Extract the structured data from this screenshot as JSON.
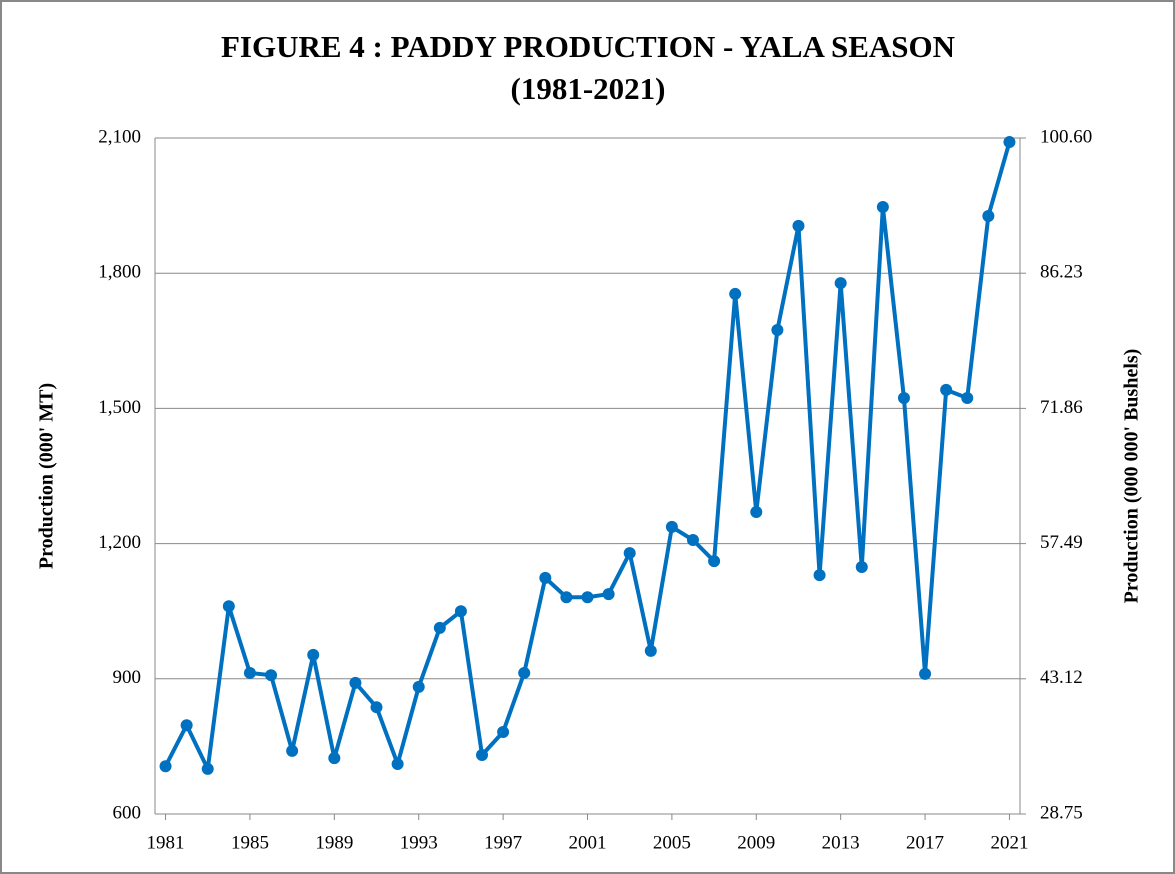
{
  "chart_data": {
    "type": "line",
    "title": "FIGURE 4 : PADDY PRODUCTION -  YALA SEASON",
    "subtitle": "(1981-2021)",
    "y_label": "Production (000' MT)",
    "y2_label": "Production (000 000' Bushels)",
    "x": [
      1981,
      1982,
      1983,
      1984,
      1985,
      1986,
      1987,
      1988,
      1989,
      1990,
      1991,
      1992,
      1993,
      1994,
      1995,
      1996,
      1997,
      1998,
      1999,
      2000,
      2001,
      2002,
      2003,
      2004,
      2005,
      2006,
      2007,
      2008,
      2009,
      2010,
      2011,
      2012,
      2013,
      2014,
      2015,
      2016,
      2017,
      2018,
      2019,
      2020,
      2021
    ],
    "series": [
      {
        "name": "Production",
        "color": "#0070c0",
        "values": [
          706,
          797,
          700,
          1061,
          913,
          908,
          740,
          953,
          724,
          891,
          837,
          711,
          882,
          1013,
          1050,
          731,
          782,
          913,
          1124,
          1081,
          1081,
          1088,
          1179,
          962,
          1237,
          1208,
          1161,
          1754,
          1270,
          1674,
          1905,
          1130,
          1778,
          1148,
          1947,
          1523,
          911,
          1541,
          1523,
          1927,
          2091
        ]
      }
    ],
    "xlim": [
      1980.5,
      2021.5
    ],
    "xticks": [
      1981,
      1985,
      1989,
      1993,
      1997,
      2001,
      2005,
      2009,
      2013,
      2017,
      2021
    ],
    "ylim": [
      600,
      2100
    ],
    "yticks": [
      600,
      900,
      {
        "value": 1200,
        "label": "1,200"
      },
      {
        "value": 1500,
        "label": "1,500"
      },
      {
        "value": 1800,
        "label": "1,800"
      },
      {
        "value": 2100,
        "label": "2,100"
      }
    ],
    "y2lim": [
      28.75,
      100.6
    ],
    "y2ticks": [
      28.75,
      43.12,
      57.49,
      71.86,
      86.23,
      {
        "value": 100.6,
        "label": "100.60"
      }
    ],
    "grid": true
  }
}
